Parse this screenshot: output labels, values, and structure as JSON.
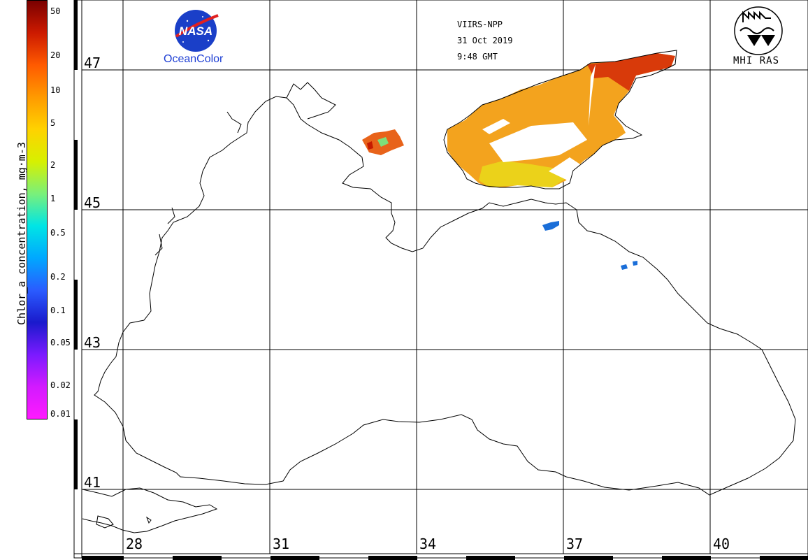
{
  "colorbar": {
    "title": "Chlor_a concentration, mg·m-3",
    "ticks": [
      "50",
      "20",
      "10",
      "5",
      "2",
      "1",
      "0.5",
      "0.2",
      "0.1",
      "0.05",
      "0.02",
      "0.01"
    ],
    "gradient": [
      "#7a0000",
      "#cc1a00",
      "#ff5a00",
      "#ff9a00",
      "#ffd200",
      "#d7f000",
      "#7af07a",
      "#00e5e5",
      "#00a8ff",
      "#2a5cff",
      "#1a1acc",
      "#7a1aff",
      "#d21aff",
      "#ff1aff"
    ]
  },
  "map": {
    "lat_labels": [
      "47",
      "45",
      "43",
      "41"
    ],
    "lon_labels": [
      "28",
      "31",
      "34",
      "37",
      "40"
    ]
  },
  "satellite": {
    "sensor": "VIIRS-NPP",
    "date": "31 Oct 2019",
    "time": "9:48 GMT"
  },
  "logos": {
    "nasa_label": "NASA",
    "nasa_caption": "OceanColor",
    "mhi_caption": "MHI RAS"
  }
}
